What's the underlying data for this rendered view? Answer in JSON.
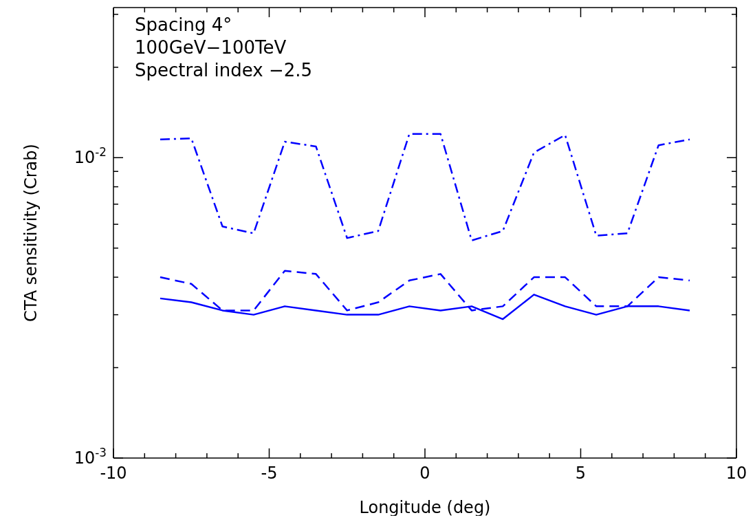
{
  "chart_data": {
    "type": "line",
    "xlabel": "Longitude (deg)",
    "ylabel": "CTA sensitivity (Crab)",
    "annotations": [
      "Spacing 4°",
      "100GeV−100TeV",
      "Spectral index −2.5"
    ],
    "x": [
      -8.5,
      -7.5,
      -6.5,
      -5.5,
      -4.5,
      -3.5,
      -2.5,
      -1.5,
      -0.5,
      0.5,
      1.5,
      2.5,
      3.5,
      4.5,
      5.5,
      6.5,
      7.5,
      8.5
    ],
    "series": [
      {
        "color": "#0000ff",
        "line_style": "dashdot",
        "values": [
          0.0115,
          0.0116,
          0.0059,
          0.0056,
          0.0113,
          0.0109,
          0.0054,
          0.0057,
          0.012,
          0.012,
          0.0053,
          0.0057,
          0.0104,
          0.0119,
          0.0055,
          0.0056,
          0.011,
          0.0115
        ]
      },
      {
        "color": "#0000ff",
        "line_style": "dashed",
        "values": [
          0.004,
          0.0038,
          0.0031,
          0.0031,
          0.0042,
          0.0041,
          0.0031,
          0.0033,
          0.0039,
          0.0041,
          0.0031,
          0.0032,
          0.004,
          0.004,
          0.0032,
          0.0032,
          0.004,
          0.0039
        ]
      },
      {
        "color": "#0000ff",
        "line_style": "solid",
        "values": [
          0.0034,
          0.0033,
          0.0031,
          0.003,
          0.0032,
          0.0031,
          0.003,
          0.003,
          0.0032,
          0.0031,
          0.0032,
          0.0029,
          0.0035,
          0.0032,
          0.003,
          0.0032,
          0.0032,
          0.0031
        ]
      }
    ],
    "log": "y",
    "xlim": [
      -10,
      10
    ],
    "xticks": [
      -10,
      {
        "value": -9,
        "label": null
      },
      {
        "value": -8,
        "label": null
      },
      {
        "value": -7,
        "label": null
      },
      {
        "value": -6,
        "label": null
      },
      -5,
      {
        "value": -4,
        "label": null
      },
      {
        "value": -3,
        "label": null
      },
      {
        "value": -2,
        "label": null
      },
      {
        "value": -1,
        "label": null
      },
      0,
      {
        "value": 1,
        "label": null
      },
      {
        "value": 2,
        "label": null
      },
      {
        "value": 3,
        "label": null
      },
      {
        "value": 4,
        "label": null
      },
      5,
      {
        "value": 6,
        "label": null
      },
      {
        "value": 7,
        "label": null
      },
      {
        "value": 8,
        "label": null
      },
      {
        "value": 9,
        "label": null
      },
      10
    ],
    "ylim": [
      0.001,
      0.0316
    ],
    "yticks": [
      {
        "value": 0.001,
        "label": "10$^{-3}$"
      },
      {
        "value": 0.002,
        "label": null
      },
      {
        "value": 0.003,
        "label": null
      },
      {
        "value": 0.004,
        "label": null
      },
      {
        "value": 0.005,
        "label": null
      },
      {
        "value": 0.006,
        "label": null
      },
      {
        "value": 0.007,
        "label": null
      },
      {
        "value": 0.008,
        "label": null
      },
      {
        "value": 0.009,
        "label": null
      },
      {
        "value": 0.01,
        "label": "10$^{-2}$"
      },
      {
        "value": 0.02,
        "label": null
      },
      {
        "value": 0.03,
        "label": null
      }
    ],
    "marker": "none"
  }
}
